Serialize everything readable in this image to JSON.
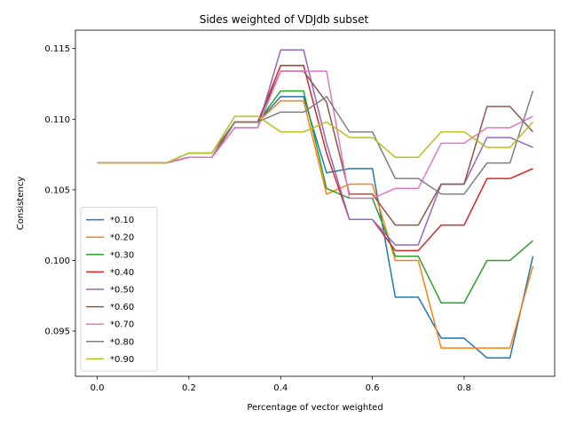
{
  "chart_data": {
    "type": "line",
    "title": "Sides weighted of VDJdb subset",
    "xlabel": "Percentage of vector weighted",
    "ylabel": "Consistency",
    "xlim": [
      -0.0475,
      0.9975
    ],
    "ylim": [
      0.0918,
      0.1163
    ],
    "xticks": [
      0.0,
      0.2,
      0.4,
      0.6,
      0.8
    ],
    "xtick_labels": [
      "0.0",
      "0.2",
      "0.4",
      "0.6",
      "0.8"
    ],
    "yticks": [
      0.095,
      0.1,
      0.105,
      0.11,
      0.115
    ],
    "ytick_labels": [
      "0.095",
      "0.100",
      "0.105",
      "0.110",
      "0.115"
    ],
    "legend_position": "lower-left",
    "grid": false,
    "x": [
      0.0,
      0.05,
      0.1,
      0.15,
      0.2,
      0.25,
      0.3,
      0.35,
      0.4,
      0.45,
      0.5,
      0.55,
      0.6,
      0.65,
      0.7,
      0.75,
      0.8,
      0.85,
      0.9,
      0.95
    ],
    "series": [
      {
        "name": "*0.10",
        "color": "#1f77b4",
        "values": [
          0.1069,
          0.1069,
          0.1069,
          0.1069,
          0.1073,
          0.1073,
          0.1098,
          0.1098,
          0.1116,
          0.1116,
          0.1062,
          0.1065,
          0.1065,
          0.0974,
          0.0974,
          0.0945,
          0.0945,
          0.0931,
          0.0931,
          0.1003
        ]
      },
      {
        "name": "*0.20",
        "color": "#ff7f0e",
        "values": [
          0.1069,
          0.1069,
          0.1069,
          0.1069,
          0.1073,
          0.1073,
          0.1098,
          0.1098,
          0.1113,
          0.1113,
          0.1047,
          0.1054,
          0.1054,
          0.1,
          0.1,
          0.0938,
          0.0938,
          0.0938,
          0.0938,
          0.0996
        ]
      },
      {
        "name": "*0.30",
        "color": "#2ca02c",
        "values": [
          0.1069,
          0.1069,
          0.1069,
          0.1069,
          0.1073,
          0.1073,
          0.1098,
          0.1098,
          0.112,
          0.112,
          0.1051,
          0.1044,
          0.1044,
          0.1003,
          0.1003,
          0.097,
          0.097,
          0.1,
          0.1,
          0.1014
        ]
      },
      {
        "name": "*0.40",
        "color": "#d62728",
        "values": [
          0.1069,
          0.1069,
          0.1069,
          0.1069,
          0.1073,
          0.1073,
          0.1098,
          0.1098,
          0.1138,
          0.1138,
          0.1076,
          0.1029,
          0.1029,
          0.1007,
          0.1007,
          0.1025,
          0.1025,
          0.1058,
          0.1058,
          0.1065
        ]
      },
      {
        "name": "*0.50",
        "color": "#9467bd",
        "values": [
          0.1069,
          0.1069,
          0.1069,
          0.1069,
          0.1073,
          0.1073,
          0.1094,
          0.1094,
          0.1149,
          0.1149,
          0.1083,
          0.1029,
          0.1029,
          0.1011,
          0.1011,
          0.1054,
          0.1054,
          0.1087,
          0.1087,
          0.108
        ]
      },
      {
        "name": "*0.60",
        "color": "#8c564b",
        "values": [
          0.1069,
          0.1069,
          0.1069,
          0.1069,
          0.1073,
          0.1073,
          0.1098,
          0.1098,
          0.1134,
          0.1134,
          0.1112,
          0.1047,
          0.1047,
          0.1025,
          0.1025,
          0.1054,
          0.1054,
          0.1109,
          0.1109,
          0.1091
        ]
      },
      {
        "name": "*0.70",
        "color": "#e377c2",
        "values": [
          0.1069,
          0.1069,
          0.1069,
          0.1069,
          0.1073,
          0.1073,
          0.1094,
          0.1094,
          0.1134,
          0.1134,
          0.1134,
          0.1044,
          0.1044,
          0.1051,
          0.1051,
          0.1083,
          0.1083,
          0.1094,
          0.1094,
          0.1102
        ]
      },
      {
        "name": "*0.80",
        "color": "#7f7f7f",
        "values": [
          0.1069,
          0.1069,
          0.1069,
          0.1069,
          0.1076,
          0.1076,
          0.1098,
          0.1098,
          0.1105,
          0.1105,
          0.1116,
          0.1091,
          0.1091,
          0.1058,
          0.1058,
          0.1047,
          0.1047,
          0.1069,
          0.1069,
          0.112
        ]
      },
      {
        "name": "*0.90",
        "color": "#bcbd22",
        "values": [
          0.1069,
          0.1069,
          0.1069,
          0.1069,
          0.1076,
          0.1076,
          0.1102,
          0.1102,
          0.1091,
          0.1091,
          0.1098,
          0.1087,
          0.1087,
          0.1073,
          0.1073,
          0.1091,
          0.1091,
          0.108,
          0.108,
          0.1098
        ]
      }
    ]
  }
}
